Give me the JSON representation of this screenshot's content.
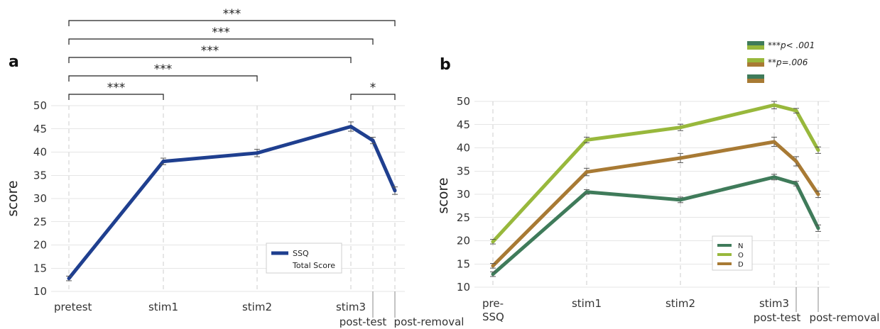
{
  "colors": {
    "ssq": "#1f3f8f",
    "n": "#3f7b5a",
    "o": "#98b83c",
    "d": "#a87a34",
    "grid": "#cccccc",
    "err": "#555555"
  },
  "chart_data": [
    {
      "panel": "a",
      "type": "line",
      "ylabel": "score",
      "ylim": [
        10,
        50
      ],
      "yticks": [
        10,
        15,
        20,
        25,
        30,
        35,
        40,
        45,
        50
      ],
      "x_labels": [
        "pretest",
        "stim1",
        "stim2",
        "stim3",
        "post-test",
        "post-removal"
      ],
      "series": [
        {
          "name": "SSQ Total Score",
          "key": "ssq",
          "values": [
            12.8,
            38.0,
            39.8,
            45.5,
            42.5,
            31.7
          ],
          "err": [
            0.5,
            0.7,
            0.8,
            1.0,
            0.7,
            0.8
          ]
        }
      ],
      "legend": {
        "position": "bottom-right",
        "lines": [
          "SSQ",
          "Total Score"
        ]
      },
      "significance": [
        {
          "from": 0,
          "to": 1,
          "label": "***"
        },
        {
          "from": 0,
          "to": 2,
          "label": "***"
        },
        {
          "from": 0,
          "to": 3,
          "label": "***"
        },
        {
          "from": 0,
          "to": 4,
          "label": "***"
        },
        {
          "from": 0,
          "to": 5,
          "label": "***"
        },
        {
          "from": 3,
          "to": 5,
          "label": "*"
        }
      ],
      "grid": true
    },
    {
      "panel": "b",
      "type": "line",
      "ylabel": "score",
      "ylim": [
        10,
        50
      ],
      "yticks": [
        10,
        15,
        20,
        25,
        30,
        35,
        40,
        45,
        50
      ],
      "x_labels": [
        "pre-\nSSQ",
        "stim1",
        "stim2",
        "stim3",
        "post-test",
        "post-removal"
      ],
      "series": [
        {
          "name": "N",
          "key": "n",
          "values": [
            12.8,
            30.5,
            28.8,
            33.7,
            32.3,
            22.7
          ],
          "err": [
            0.5,
            0.5,
            0.6,
            0.6,
            0.5,
            0.7
          ]
        },
        {
          "name": "O",
          "key": "o",
          "values": [
            19.8,
            41.7,
            44.4,
            49.2,
            48.0,
            39.5
          ],
          "err": [
            0.5,
            0.6,
            0.7,
            0.8,
            0.5,
            0.7
          ]
        },
        {
          "name": "D",
          "key": "d",
          "values": [
            14.6,
            34.8,
            37.8,
            41.3,
            37.1,
            30.0
          ],
          "err": [
            0.5,
            0.8,
            1.0,
            1.0,
            1.0,
            0.7
          ]
        }
      ],
      "legend": {
        "position": "bottom-right"
      },
      "significance_legend": [
        {
          "text": "***p< .001",
          "top": "n",
          "bottom": "o"
        },
        {
          "text": "**p=.006",
          "top": "o",
          "bottom": "d"
        },
        {
          "text": "",
          "top": "n",
          "bottom": "d"
        }
      ],
      "grid": true
    }
  ]
}
